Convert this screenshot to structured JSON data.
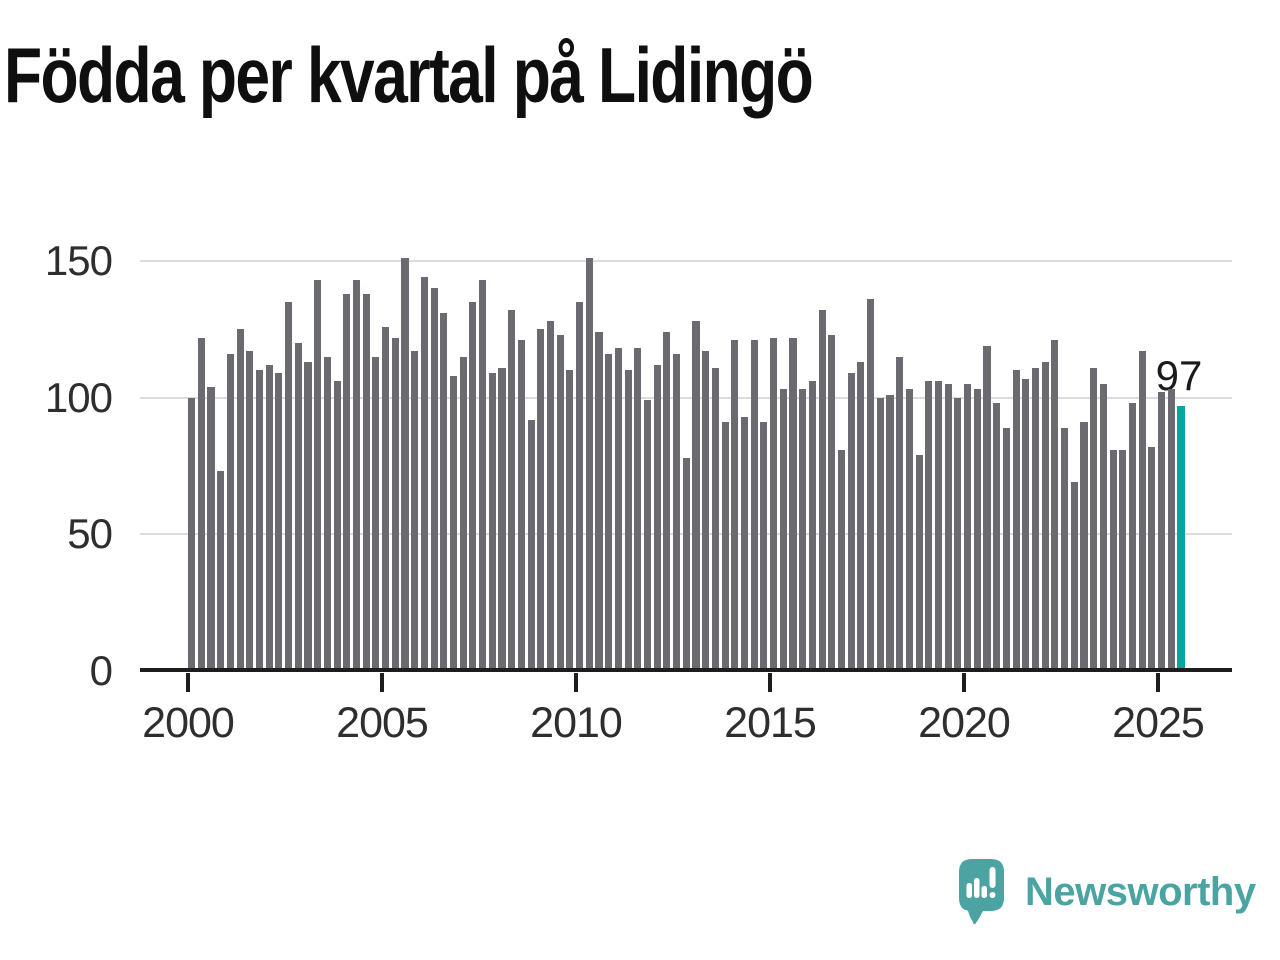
{
  "title": "Födda per kvartal på Lidingö",
  "chart_data": {
    "type": "bar",
    "title": "Födda per kvartal på Lidingö",
    "x_unit": "quarter",
    "start_period": "2000 Q1",
    "end_period": "2025 Q3",
    "values": [
      100,
      122,
      104,
      73,
      116,
      125,
      117,
      110,
      112,
      109,
      135,
      120,
      113,
      143,
      115,
      106,
      138,
      143,
      138,
      115,
      126,
      122,
      151,
      117,
      144,
      140,
      131,
      108,
      115,
      135,
      143,
      109,
      111,
      132,
      121,
      92,
      125,
      128,
      123,
      110,
      135,
      151,
      124,
      116,
      118,
      110,
      118,
      99,
      112,
      124,
      116,
      78,
      128,
      117,
      111,
      91,
      121,
      93,
      121,
      91,
      122,
      103,
      122,
      103,
      106,
      132,
      123,
      81,
      109,
      113,
      136,
      100,
      101,
      115,
      103,
      79,
      106,
      106,
      105,
      100,
      105,
      103,
      119,
      98,
      89,
      110,
      107,
      111,
      113,
      121,
      89,
      69,
      91,
      111,
      105,
      81,
      81,
      98,
      117,
      82,
      102,
      103,
      97
    ],
    "x_ticks": [
      "2000",
      "2005",
      "2010",
      "2015",
      "2020",
      "2025"
    ],
    "y_ticks": [
      0,
      50,
      100,
      150
    ],
    "ylim": [
      0,
      155
    ],
    "grid": "horizontal",
    "legend": "none",
    "highlight_index": 102,
    "annotation": {
      "label": "97",
      "value": 97
    },
    "colors": {
      "bar": "#6a6a70",
      "highlight": "#0BA39D",
      "grid": "#dcdcdc",
      "axis": "#1d1d1d"
    }
  },
  "branding": {
    "logo_text": "Newsworthy",
    "logo_color": "#4BA4A1",
    "icon": "speech-bubble-bar-chart"
  }
}
